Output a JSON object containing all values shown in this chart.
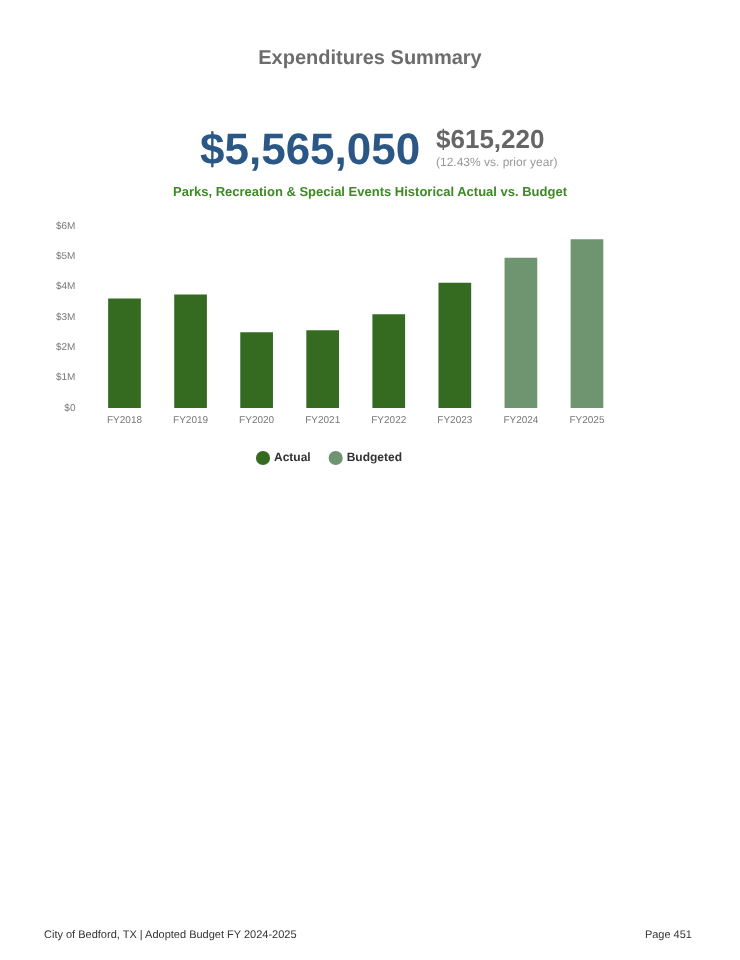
{
  "chart_data": {
    "type": "bar",
    "title": "Parks, Recreation & Special Events Historical Actual vs. Budget",
    "annotations": [
      "Expenditures Summary",
      "$5,565,050",
      "$615,220",
      "(12.43% vs. prior year)",
      "City of Bedford, TX | Adopted Budget FY 2024-2025",
      "Page 451"
    ],
    "categories": [
      "FY2018",
      "FY2019",
      "FY2020",
      "FY2021",
      "FY2022",
      "FY2023",
      "FY2024",
      "FY2025"
    ],
    "series": [
      {
        "name": "Actual",
        "color": "#346b21",
        "values": [
          3610000,
          3740000,
          2500000,
          2560000,
          3090000,
          4130000,
          null,
          null
        ]
      },
      {
        "name": "Budgeted",
        "color": "#6e9470",
        "values": [
          null,
          null,
          null,
          null,
          null,
          null,
          4950000,
          5565050
        ]
      }
    ],
    "ylim": [
      0,
      6000000
    ],
    "yticks": [
      {
        "value": 0,
        "label": "$0"
      },
      {
        "value": 1000000,
        "label": "$1M"
      },
      {
        "value": 2000000,
        "label": "$2M"
      },
      {
        "value": 3000000,
        "label": "$3M"
      },
      {
        "value": 4000000,
        "label": "$4M"
      },
      {
        "value": 5000000,
        "label": "$5M"
      },
      {
        "value": 6000000,
        "label": "$6M"
      }
    ],
    "grid": false,
    "legend": "bottom"
  }
}
